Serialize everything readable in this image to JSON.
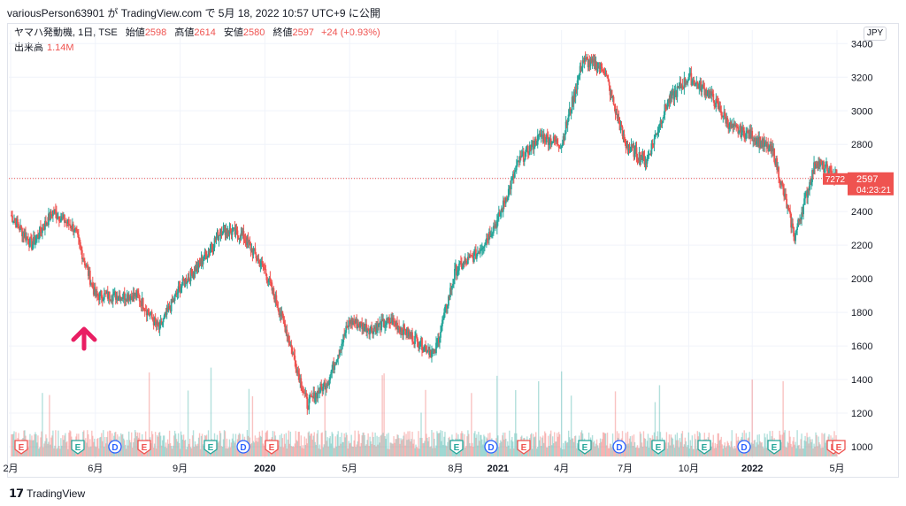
{
  "header": {
    "caption": "variousPerson63901 が TradingView.com で 5月 18, 2022 10:57 UTC+9 に公開"
  },
  "legend": {
    "symbol": "ヤマハ発動機, 1日, TSE",
    "open_label": "始値",
    "open": "2598",
    "high_label": "高値",
    "high": "2614",
    "low_label": "安値",
    "low": "2580",
    "close_label": "終値",
    "close": "2597",
    "change": "+24 (+0.93%)",
    "volume_label": "出来高",
    "volume": "1.14M"
  },
  "currency": "JPY",
  "price_tag": {
    "price": "2597",
    "countdown": "04:23:21",
    "left_label": "7272"
  },
  "footer": {
    "brand": "TradingView"
  },
  "colors": {
    "up": "#26a69a",
    "down": "#ef5350",
    "arrow": "#e91e63",
    "grid": "#f0f3fa"
  },
  "events": [
    {
      "type": "E",
      "x_label": "2019-03",
      "status": "negative"
    },
    {
      "type": "E",
      "x_label": "2019-05",
      "status": "positive"
    },
    {
      "type": "D",
      "x_label": "2019-06"
    },
    {
      "type": "E",
      "x_label": "2019-08",
      "status": "negative"
    },
    {
      "type": "E",
      "x_label": "2019-11",
      "status": "positive"
    },
    {
      "type": "D",
      "x_label": "2019-12"
    },
    {
      "type": "E",
      "x_label": "2020-02",
      "status": "negative"
    },
    {
      "type": "E",
      "x_label": "2020-11",
      "status": "positive"
    },
    {
      "type": "D",
      "x_label": "2020-12"
    },
    {
      "type": "E",
      "x_label": "2021-02",
      "status": "negative"
    },
    {
      "type": "E",
      "x_label": "2021-05",
      "status": "positive"
    },
    {
      "type": "D",
      "x_label": "2021-06"
    },
    {
      "type": "E",
      "x_label": "2021-08",
      "status": "positive"
    },
    {
      "type": "E",
      "x_label": "2021-11",
      "status": "positive"
    },
    {
      "type": "D",
      "x_label": "2021-12"
    },
    {
      "type": "E",
      "x_label": "2022-02",
      "status": "positive"
    },
    {
      "type": "E",
      "x_label": "2022-03",
      "status": "negative"
    },
    {
      "type": "E",
      "x_label": "2022-05",
      "status": "negative"
    }
  ],
  "chart_data": {
    "type": "candlestick",
    "title": "ヤマハ発動機, 1日, TSE",
    "ylim": [
      900,
      3500
    ],
    "y_ticks": [
      1000,
      1200,
      1400,
      1600,
      1800,
      2000,
      2200,
      2400,
      2600,
      2800,
      3000,
      3200,
      3400
    ],
    "x_ticks": [
      "2月",
      "6月",
      "9月",
      "2020",
      "5月",
      "8月",
      "2021",
      "4月",
      "7月",
      "10月",
      "2022",
      "5月"
    ],
    "close_series": [
      {
        "date": "2019-02",
        "close": 2380
      },
      {
        "date": "2019-03",
        "close": 2200
      },
      {
        "date": "2019-04",
        "close": 2400
      },
      {
        "date": "2019-04-25",
        "close": 2300
      },
      {
        "date": "2019-05",
        "close": 1900
      },
      {
        "date": "2019-06",
        "close": 1900
      },
      {
        "date": "2019-07",
        "close": 1900
      },
      {
        "date": "2019-08",
        "close": 1700
      },
      {
        "date": "2019-09",
        "close": 1950
      },
      {
        "date": "2019-10",
        "close": 2100
      },
      {
        "date": "2019-11",
        "close": 2300
      },
      {
        "date": "2019-12",
        "close": 2250
      },
      {
        "date": "2020-01",
        "close": 2050
      },
      {
        "date": "2020-02",
        "close": 1700
      },
      {
        "date": "2020-03",
        "close": 1250
      },
      {
        "date": "2020-04",
        "close": 1400
      },
      {
        "date": "2020-05",
        "close": 1750
      },
      {
        "date": "2020-06",
        "close": 1700
      },
      {
        "date": "2020-07",
        "close": 1750
      },
      {
        "date": "2020-08",
        "close": 1650
      },
      {
        "date": "2020-09",
        "close": 1550
      },
      {
        "date": "2020-11",
        "close": 2050
      },
      {
        "date": "2020-12",
        "close": 2150
      },
      {
        "date": "2021-01",
        "close": 2350
      },
      {
        "date": "2021-02",
        "close": 2700
      },
      {
        "date": "2021-03",
        "close": 2850
      },
      {
        "date": "2021-04",
        "close": 2800
      },
      {
        "date": "2021-05",
        "close": 3300
      },
      {
        "date": "2021-06",
        "close": 3250
      },
      {
        "date": "2021-07",
        "close": 2800
      },
      {
        "date": "2021-08",
        "close": 2700
      },
      {
        "date": "2021-09",
        "close": 3050
      },
      {
        "date": "2021-10",
        "close": 3200
      },
      {
        "date": "2021-11",
        "close": 3100
      },
      {
        "date": "2021-12",
        "close": 2900
      },
      {
        "date": "2022-01",
        "close": 2850
      },
      {
        "date": "2022-02",
        "close": 2750
      },
      {
        "date": "2022-03",
        "close": 2250
      },
      {
        "date": "2022-04",
        "close": 2700
      },
      {
        "date": "2022-05",
        "close": 2597
      }
    ],
    "last_price": 2597,
    "annotation": "up-arrow"
  }
}
